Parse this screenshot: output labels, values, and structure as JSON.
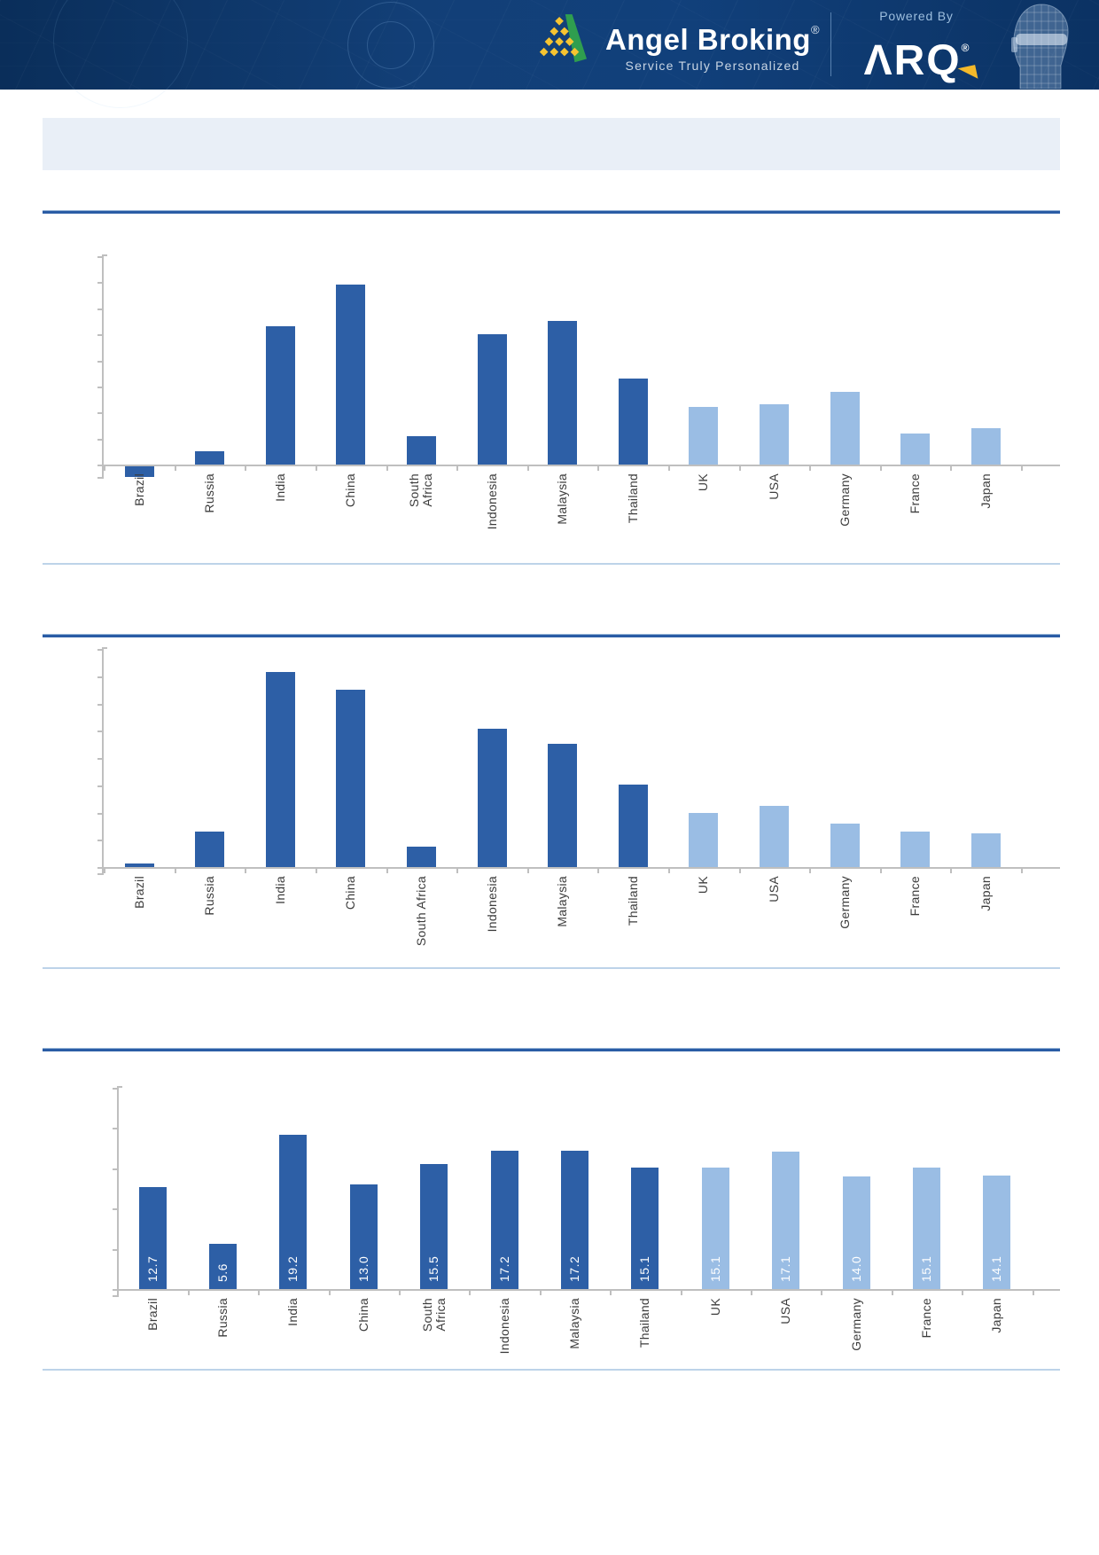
{
  "header": {
    "brand": {
      "name": "Angel Broking",
      "mark": "®",
      "tagline": "Service Truly Personalized"
    },
    "powered_by_label": "Powered By",
    "arq": {
      "name": "ARQ",
      "mark": "®"
    },
    "icons": [
      "angel-broking-pyramid-logo",
      "arq-arrow",
      "wireframe-robot-head"
    ]
  },
  "title_banner": {
    "text": ""
  },
  "categories": [
    "Brazil",
    "Russia",
    "India",
    "China",
    "South Africa",
    "Indonesia",
    "Malaysia",
    "Thailand",
    "UK",
    "USA",
    "Germany",
    "France",
    "Japan"
  ],
  "colors": {
    "bar_dark_emerging": "#2d5fa6",
    "bar_light_developed": "#9abde4",
    "axis": "#bfbfbf",
    "label_text": "#3c3c3c",
    "value_label_text": "#ffffff",
    "rule_dark": "#2a5ca5",
    "rule_thin": "#bdd3e9",
    "banner_bg": "#e9eff7",
    "header_bg": "#123f77",
    "accent_yellow": "#f4b92a",
    "logo_green": "#2f9e4f",
    "logo_yellow": "#f6c431"
  },
  "chart_data": [
    {
      "type": "bar",
      "title": "",
      "categories": [
        "Brazil",
        "Russia",
        "India",
        "China",
        "South Africa",
        "Indonesia",
        "Malaysia",
        "Thailand",
        "UK",
        "USA",
        "Germany",
        "France",
        "Japan"
      ],
      "values": [
        -0.4,
        0.5,
        5.3,
        6.9,
        1.1,
        5.0,
        5.5,
        3.3,
        2.2,
        2.3,
        2.8,
        1.2,
        1.4
      ],
      "ylim": [
        -0.8,
        8
      ],
      "tick_interval": 1,
      "y_axis_tick_labels_visible": false,
      "values_estimated_from_gridlines": true,
      "value_labels_visible": false,
      "grid": false,
      "legend": null,
      "bar_groups": [
        "emerging",
        "emerging",
        "emerging",
        "emerging",
        "emerging",
        "emerging",
        "emerging",
        "emerging",
        "developed",
        "developed",
        "developed",
        "developed",
        "developed"
      ],
      "group_colors": {
        "emerging": "#2d5fa6",
        "developed": "#9abde4"
      }
    },
    {
      "type": "bar",
      "title": "",
      "categories": [
        "Brazil",
        "Russia",
        "India",
        "China",
        "South Africa",
        "Indonesia",
        "Malaysia",
        "Thailand",
        "UK",
        "USA",
        "Germany",
        "France",
        "Japan"
      ],
      "values": [
        0.15,
        1.4,
        7.6,
        6.9,
        0.8,
        5.4,
        4.8,
        3.2,
        2.1,
        2.4,
        1.7,
        1.4,
        1.3
      ],
      "ylim": [
        0,
        8.5
      ],
      "tick_interval": 1,
      "y_axis_tick_labels_visible": false,
      "values_estimated_from_gridlines": true,
      "value_labels_visible": false,
      "grid": false,
      "legend": null,
      "bar_groups": [
        "emerging",
        "emerging",
        "emerging",
        "emerging",
        "emerging",
        "emerging",
        "emerging",
        "emerging",
        "developed",
        "developed",
        "developed",
        "developed",
        "developed"
      ],
      "group_colors": {
        "emerging": "#2d5fa6",
        "developed": "#9abde4"
      }
    },
    {
      "type": "bar",
      "title": "",
      "categories": [
        "Brazil",
        "Russia",
        "India",
        "China",
        "South Africa",
        "Indonesia",
        "Malaysia",
        "Thailand",
        "UK",
        "USA",
        "Germany",
        "France",
        "Japan"
      ],
      "values": [
        12.7,
        5.6,
        19.2,
        13.0,
        15.5,
        17.2,
        17.2,
        15.1,
        15.1,
        17.1,
        14.0,
        15.1,
        14.1
      ],
      "value_labels": [
        "12.7",
        "5.6",
        "19.2",
        "13.0",
        "15.5",
        "17.2",
        "17.2",
        "15.1",
        "15.1",
        "17.1",
        "14.0",
        "15.1",
        "14.1"
      ],
      "ylim": [
        0,
        25
      ],
      "tick_interval": 5,
      "y_axis_tick_labels_visible": false,
      "values_estimated_from_gridlines": false,
      "value_labels_visible": true,
      "grid": false,
      "legend": null,
      "bar_groups": [
        "emerging",
        "emerging",
        "emerging",
        "emerging",
        "emerging",
        "emerging",
        "emerging",
        "emerging",
        "developed",
        "developed",
        "developed",
        "developed",
        "developed"
      ],
      "group_colors": {
        "emerging": "#2d5fa6",
        "developed": "#9abde4"
      }
    }
  ]
}
